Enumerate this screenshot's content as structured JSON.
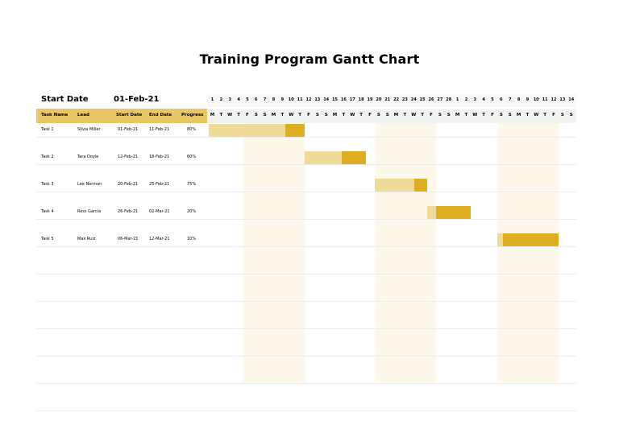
{
  "title": "Training Program Gantt Chart",
  "start_date_label": "Start Date",
  "start_date_value": "01-Feb-21",
  "columns": {
    "task": "Task Name",
    "lead": "Lead",
    "start": "Start Date",
    "end": "End Date",
    "progress": "Progress"
  },
  "colors": {
    "header_fill": "#E9C766",
    "done": "#DDAE22",
    "remaining": "#F0DA98",
    "weekend_shade": "#FDF8EA"
  },
  "timeline": {
    "day_numbers": [
      "1",
      "2",
      "3",
      "4",
      "5",
      "6",
      "7",
      "8",
      "9",
      "10",
      "11",
      "12",
      "13",
      "14",
      "15",
      "16",
      "17",
      "18",
      "19",
      "20",
      "21",
      "22",
      "23",
      "24",
      "25",
      "26",
      "27",
      "28",
      "1",
      "2",
      "3",
      "4",
      "5",
      "6",
      "7",
      "8",
      "9",
      "10",
      "11",
      "12",
      "13",
      "14"
    ],
    "day_letters": [
      "M",
      "T",
      "W",
      "T",
      "F",
      "S",
      "S",
      "M",
      "T",
      "W",
      "T",
      "F",
      "S",
      "S",
      "M",
      "T",
      "W",
      "T",
      "F",
      "S",
      "S",
      "M",
      "T",
      "W",
      "T",
      "F",
      "S",
      "S",
      "M",
      "T",
      "W",
      "T",
      "F",
      "S",
      "S",
      "M",
      "T",
      "W",
      "T",
      "F",
      "S",
      "S"
    ],
    "shaded_weeks": [
      [
        4,
        10
      ],
      [
        19,
        25
      ],
      [
        33,
        39
      ]
    ]
  },
  "tasks": [
    {
      "name": "Task 1",
      "lead": "Silvia Miller",
      "start": "01-Feb-21",
      "end": "11-Feb-21",
      "progress": "80%"
    },
    {
      "name": "Task 2",
      "lead": "Tara Doyle",
      "start": "12-Feb-21",
      "end": "18-Feb-21",
      "progress": "60%"
    },
    {
      "name": "Task 3",
      "lead": "Lee Norman",
      "start": "20-Feb-21",
      "end": "25-Feb-21",
      "progress": "75%"
    },
    {
      "name": "Task 4",
      "lead": "Ross Garcia",
      "start": "26-Feb-21",
      "end": "02-Mar-21",
      "progress": "20%"
    },
    {
      "name": "Task 5",
      "lead": "Max Ruiz",
      "start": "06-Mar-21",
      "end": "12-Mar-21",
      "progress": "10%"
    }
  ],
  "chart_data": {
    "type": "bar",
    "title": "Training Program Gantt Chart",
    "categories": [
      "Task 1",
      "Task 2",
      "Task 3",
      "Task 4",
      "Task 5"
    ],
    "start_dates": [
      "2021-02-01",
      "2021-02-12",
      "2021-02-20",
      "2021-02-26",
      "2021-03-06"
    ],
    "end_dates": [
      "2021-02-11",
      "2021-02-18",
      "2021-02-25",
      "2021-03-02",
      "2021-03-12"
    ],
    "progress": [
      0.8,
      0.6,
      0.75,
      0.2,
      0.1
    ],
    "x_range": [
      "2021-02-01",
      "2021-03-14"
    ],
    "grid": true
  }
}
